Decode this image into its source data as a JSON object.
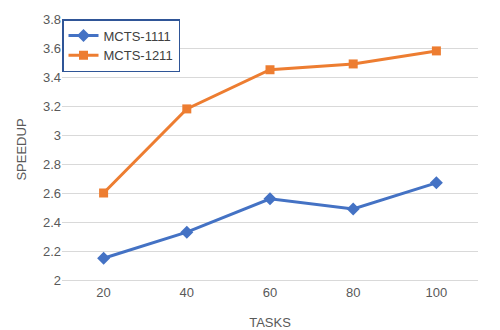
{
  "chart_data": {
    "type": "line",
    "x_label": "TASKS",
    "y_label": "SPEEDUP",
    "categories": [
      "20",
      "40",
      "60",
      "80",
      "100"
    ],
    "series": [
      {
        "name": "MCTS-1111",
        "color": "#4472c4",
        "marker": "diamond",
        "values": [
          2.15,
          2.33,
          2.56,
          2.49,
          2.67
        ]
      },
      {
        "name": "MCTS-1211",
        "color": "#ed7d31",
        "marker": "square",
        "values": [
          2.6,
          3.18,
          3.45,
          3.49,
          3.58
        ]
      }
    ],
    "ylim": [
      2,
      3.8
    ],
    "yticks": [
      2,
      2.2,
      2.4,
      2.6,
      2.8,
      3,
      3.2,
      3.4,
      3.6,
      3.8
    ],
    "grid": true,
    "legend": "top-left"
  }
}
